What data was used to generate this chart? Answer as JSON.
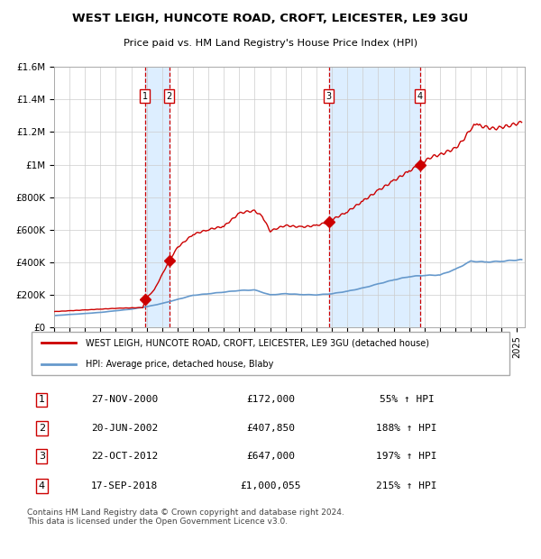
{
  "title1": "WEST LEIGH, HUNCOTE ROAD, CROFT, LEICESTER, LE9 3GU",
  "title2": "Price paid vs. HM Land Registry's House Price Index (HPI)",
  "legend_line1": "WEST LEIGH, HUNCOTE ROAD, CROFT, LEICESTER, LE9 3GU (detached house)",
  "legend_line2": "HPI: Average price, detached house, Blaby",
  "footer": "Contains HM Land Registry data © Crown copyright and database right 2024.\nThis data is licensed under the Open Government Licence v3.0.",
  "sales": [
    {
      "num": 1,
      "date_dec": 2000.9,
      "price": 172000,
      "label": "27-NOV-2000",
      "price_label": "£172,000",
      "pct_label": "55% ↑ HPI"
    },
    {
      "num": 2,
      "date_dec": 2002.46,
      "price": 407850,
      "label": "20-JUN-2002",
      "price_label": "£407,850",
      "pct_label": "188% ↑ HPI"
    },
    {
      "num": 3,
      "date_dec": 2012.81,
      "price": 647000,
      "label": "22-OCT-2012",
      "price_label": "£647,000",
      "pct_label": "197% ↑ HPI"
    },
    {
      "num": 4,
      "date_dec": 2018.71,
      "price": 1000055,
      "label": "17-SEP-2018",
      "price_label": "£1,000,055",
      "pct_label": "215% ↑ HPI"
    }
  ],
  "hpi_color": "#6699cc",
  "price_color": "#cc0000",
  "dot_color": "#cc0000",
  "vline_color": "#cc0000",
  "shade_color": "#ddeeff",
  "ylim": [
    0,
    1600000
  ],
  "yticks": [
    0,
    200000,
    400000,
    600000,
    800000,
    1000000,
    1200000,
    1400000,
    1600000
  ],
  "ytick_labels": [
    "£0",
    "£200K",
    "£400K",
    "£600K",
    "£800K",
    "£1M",
    "£1.2M",
    "£1.4M",
    "£1.6M"
  ],
  "xstart": 1995.0,
  "xend": 2025.5,
  "hpi_key_points": [
    [
      1995.0,
      70000
    ],
    [
      1996.0,
      77000
    ],
    [
      1997.0,
      83000
    ],
    [
      1998.0,
      90000
    ],
    [
      1999.0,
      100000
    ],
    [
      2000.0,
      110000
    ],
    [
      2001.0,
      125000
    ],
    [
      2002.0,
      145000
    ],
    [
      2003.0,
      170000
    ],
    [
      2004.0,
      195000
    ],
    [
      2005.0,
      205000
    ],
    [
      2006.0,
      215000
    ],
    [
      2007.0,
      225000
    ],
    [
      2008.0,
      228000
    ],
    [
      2009.0,
      198000
    ],
    [
      2010.0,
      205000
    ],
    [
      2011.0,
      200000
    ],
    [
      2012.0,
      198000
    ],
    [
      2013.0,
      205000
    ],
    [
      2014.0,
      220000
    ],
    [
      2015.0,
      240000
    ],
    [
      2016.0,
      265000
    ],
    [
      2017.0,
      290000
    ],
    [
      2018.0,
      310000
    ],
    [
      2019.0,
      318000
    ],
    [
      2020.0,
      320000
    ],
    [
      2021.0,
      355000
    ],
    [
      2022.0,
      405000
    ],
    [
      2023.0,
      400000
    ],
    [
      2024.0,
      405000
    ],
    [
      2025.3,
      415000
    ]
  ],
  "price_key_points": [
    [
      1995.0,
      95000
    ],
    [
      1996.0,
      100000
    ],
    [
      1997.0,
      105000
    ],
    [
      1998.0,
      110000
    ],
    [
      1999.0,
      115000
    ],
    [
      2000.75,
      120000
    ],
    [
      2000.92,
      172000
    ],
    [
      2001.5,
      230000
    ],
    [
      2002.46,
      407850
    ],
    [
      2003.0,
      490000
    ],
    [
      2004.0,
      570000
    ],
    [
      2005.0,
      600000
    ],
    [
      2006.0,
      620000
    ],
    [
      2007.0,
      700000
    ],
    [
      2007.5,
      710000
    ],
    [
      2008.0,
      715000
    ],
    [
      2008.5,
      680000
    ],
    [
      2009.0,
      590000
    ],
    [
      2009.5,
      610000
    ],
    [
      2010.0,
      625000
    ],
    [
      2011.0,
      615000
    ],
    [
      2012.0,
      625000
    ],
    [
      2012.81,
      647000
    ],
    [
      2013.0,
      660000
    ],
    [
      2014.0,
      710000
    ],
    [
      2015.0,
      775000
    ],
    [
      2016.0,
      840000
    ],
    [
      2017.0,
      900000
    ],
    [
      2018.0,
      960000
    ],
    [
      2018.71,
      1000055
    ],
    [
      2019.0,
      1020000
    ],
    [
      2019.5,
      1050000
    ],
    [
      2020.0,
      1060000
    ],
    [
      2020.5,
      1080000
    ],
    [
      2021.0,
      1100000
    ],
    [
      2021.5,
      1150000
    ],
    [
      2022.0,
      1220000
    ],
    [
      2022.3,
      1250000
    ],
    [
      2022.5,
      1240000
    ],
    [
      2023.0,
      1230000
    ],
    [
      2023.5,
      1220000
    ],
    [
      2024.0,
      1230000
    ],
    [
      2024.5,
      1240000
    ],
    [
      2025.3,
      1260000
    ]
  ]
}
